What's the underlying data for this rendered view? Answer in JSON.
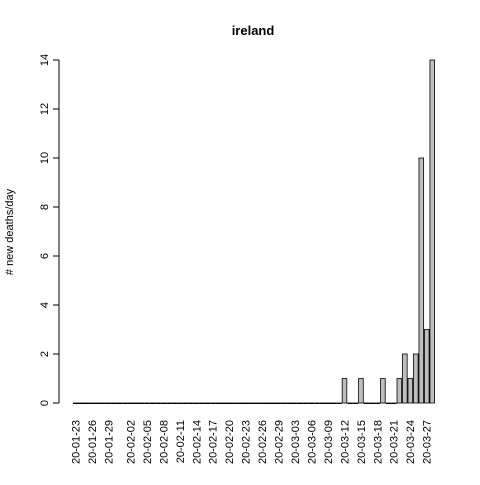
{
  "chart_data": {
    "type": "bar",
    "title": "ireland",
    "xlabel": "",
    "ylabel": "# new deaths/day",
    "ylim": [
      0,
      14
    ],
    "y_ticks": [
      0,
      2,
      4,
      6,
      8,
      10,
      12,
      14
    ],
    "x_tick_labels": [
      "20-01-23",
      "20-01-26",
      "20-01-29",
      "20-02-02",
      "20-02-05",
      "20-02-08",
      "20-02-11",
      "20-02-14",
      "20-02-17",
      "20-02-20",
      "20-02-23",
      "20-02-26",
      "20-02-29",
      "20-03-03",
      "20-03-06",
      "20-03-09",
      "20-03-12",
      "20-03-15",
      "20-03-18",
      "20-03-21",
      "20-03-24",
      "20-03-27"
    ],
    "categories": [
      "20-01-23",
      "20-01-24",
      "20-01-25",
      "20-01-26",
      "20-01-27",
      "20-01-28",
      "20-01-29",
      "20-01-30",
      "20-01-31",
      "20-02-01",
      "20-02-02",
      "20-02-03",
      "20-02-04",
      "20-02-05",
      "20-02-06",
      "20-02-07",
      "20-02-08",
      "20-02-09",
      "20-02-10",
      "20-02-11",
      "20-02-12",
      "20-02-13",
      "20-02-14",
      "20-02-15",
      "20-02-16",
      "20-02-17",
      "20-02-18",
      "20-02-19",
      "20-02-20",
      "20-02-21",
      "20-02-22",
      "20-02-23",
      "20-02-24",
      "20-02-25",
      "20-02-26",
      "20-02-27",
      "20-02-28",
      "20-02-29",
      "20-03-01",
      "20-03-02",
      "20-03-03",
      "20-03-04",
      "20-03-05",
      "20-03-06",
      "20-03-07",
      "20-03-08",
      "20-03-09",
      "20-03-10",
      "20-03-11",
      "20-03-12",
      "20-03-13",
      "20-03-14",
      "20-03-15",
      "20-03-16",
      "20-03-17",
      "20-03-18",
      "20-03-19",
      "20-03-20",
      "20-03-21",
      "20-03-22",
      "20-03-23",
      "20-03-24",
      "20-03-25",
      "20-03-26",
      "20-03-27",
      "20-03-28"
    ],
    "values": [
      0,
      0,
      0,
      0,
      0,
      0,
      0,
      0,
      0,
      0,
      0,
      0,
      0,
      0,
      0,
      0,
      0,
      0,
      0,
      0,
      0,
      0,
      0,
      0,
      0,
      0,
      0,
      0,
      0,
      0,
      0,
      0,
      0,
      0,
      0,
      0,
      0,
      0,
      0,
      0,
      0,
      0,
      0,
      0,
      0,
      0,
      0,
      0,
      0,
      1,
      0,
      0,
      1,
      0,
      0,
      0,
      1,
      0,
      0,
      1,
      2,
      1,
      2,
      10,
      3,
      14
    ],
    "bar_fill": "#bebebe",
    "bar_stroke": "#000000",
    "grid": false
  }
}
